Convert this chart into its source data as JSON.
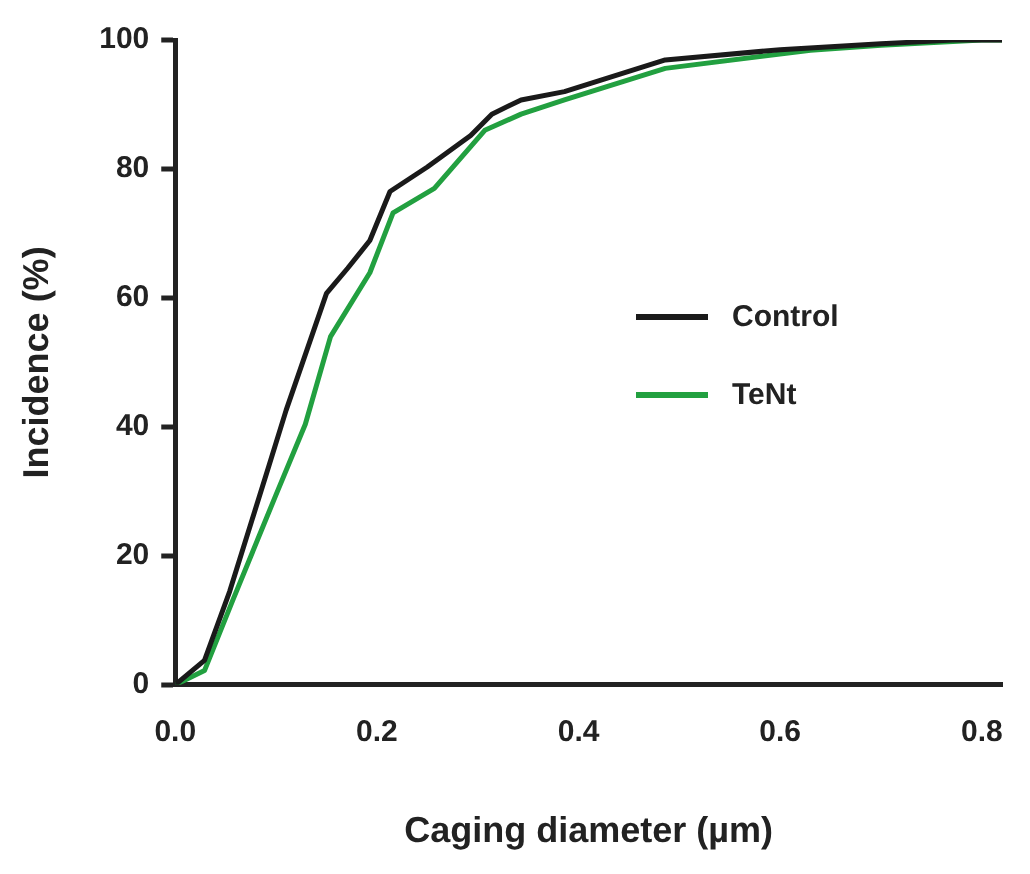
{
  "chart_data": {
    "type": "line",
    "xlabel": "Caging diameter (µm)",
    "ylabel": "Incidence (%)",
    "xlim": [
      0,
      0.82
    ],
    "xticks": [
      {
        "value": 0,
        "label": "0.0"
      },
      {
        "value": 0.2,
        "label": "0.2"
      },
      {
        "value": 0.4,
        "label": "0.4"
      },
      {
        "value": 0.6,
        "label": "0.6"
      },
      {
        "value": 0.8,
        "label": "0.8"
      }
    ],
    "ylim": [
      0,
      100
    ],
    "yticks": [
      0,
      20,
      40,
      60,
      80,
      100
    ],
    "grid": false,
    "legend": "right",
    "marker": "none",
    "line_style": "solid",
    "series": [
      {
        "name": "Control",
        "color": "#1a1a1a",
        "x": [
          0,
          0.029,
          0.054,
          0.093,
          0.11,
          0.15,
          0.171,
          0.193,
          0.213,
          0.25,
          0.293,
          0.314,
          0.343,
          0.386,
          0.486,
          0.6,
          0.7,
          0.771,
          0.82
        ],
        "values": [
          0,
          3.8,
          14.5,
          34,
          42.6,
          60.7,
          64.6,
          68.9,
          76.5,
          80.3,
          85.2,
          88.5,
          90.7,
          92,
          96.9,
          98.5,
          99.4,
          100,
          100
        ]
      },
      {
        "name": "TeNt",
        "color": "#22a040",
        "x": [
          0,
          0.029,
          0.057,
          0.1,
          0.129,
          0.154,
          0.193,
          0.216,
          0.257,
          0.307,
          0.343,
          0.386,
          0.486,
          0.63,
          0.7,
          0.8,
          0.82
        ],
        "values": [
          0,
          2.2,
          13.1,
          29.5,
          40.4,
          54,
          63.9,
          73.2,
          77,
          86,
          88.5,
          90.7,
          95.6,
          98.4,
          99.2,
          100,
          100
        ]
      }
    ]
  }
}
